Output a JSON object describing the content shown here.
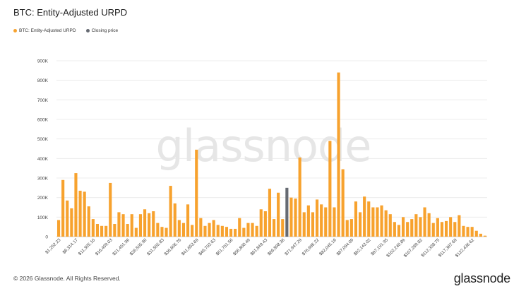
{
  "header": {
    "title": "BTC: Entity-Adjusted URPD"
  },
  "legend": [
    {
      "label": "BTC: Entity-Adjusted URPD",
      "color": "#f7a22e"
    },
    {
      "label": "Closing price",
      "color": "#666a72"
    }
  ],
  "watermark": "glassnode",
  "footer": {
    "copyright": "© 2026 Glassnode. All Rights Reserved.",
    "brand": "glassnode"
  },
  "chart_data": {
    "type": "bar",
    "ylim": [
      0,
      900000
    ],
    "yticks": [
      {
        "v": 0,
        "label": "0"
      },
      {
        "v": 100000,
        "label": "100K"
      },
      {
        "v": 200000,
        "label": "200K"
      },
      {
        "v": 300000,
        "label": "300K"
      },
      {
        "v": 400000,
        "label": "400K"
      },
      {
        "v": 500000,
        "label": "500K"
      },
      {
        "v": 600000,
        "label": "600K"
      },
      {
        "v": 700000,
        "label": "700K"
      },
      {
        "v": 800000,
        "label": "800K"
      },
      {
        "v": 900000,
        "label": "900K"
      }
    ],
    "xtick_labels": [
      "$1,252.23",
      "$6,314.17",
      "$11,305.10",
      "$16,409.03",
      "$21,451.96",
      "$26,505.90",
      "$31,555.83",
      "$36,606.76",
      "$41,653.69",
      "$46,702.63",
      "$51,751.56",
      "$56,800.49",
      "$61,849.43",
      "$66,898.36",
      "$71,947.29",
      "$76,996.22",
      "$82,045.16",
      "$87,094.09",
      "$92,143.02",
      "$97,191.95",
      "$102,240.89",
      "$107,289.82",
      "$112,338.75",
      "$117,387.69",
      "$122,436.62"
    ],
    "highlight_index": 53,
    "values": [
      85000,
      290000,
      185000,
      145000,
      325000,
      235000,
      230000,
      155000,
      90000,
      65000,
      55000,
      55000,
      275000,
      65000,
      125000,
      115000,
      65000,
      115000,
      45000,
      115000,
      140000,
      120000,
      130000,
      70000,
      50000,
      45000,
      260000,
      170000,
      85000,
      70000,
      165000,
      60000,
      445000,
      95000,
      55000,
      70000,
      85000,
      60000,
      55000,
      50000,
      40000,
      40000,
      95000,
      45000,
      70000,
      70000,
      55000,
      140000,
      130000,
      245000,
      90000,
      225000,
      90000,
      250000,
      200000,
      195000,
      405000,
      125000,
      160000,
      125000,
      190000,
      165000,
      150000,
      490000,
      150000,
      840000,
      345000,
      85000,
      90000,
      180000,
      125000,
      205000,
      180000,
      150000,
      150000,
      160000,
      135000,
      115000,
      75000,
      60000,
      100000,
      75000,
      90000,
      115000,
      100000,
      150000,
      120000,
      70000,
      95000,
      75000,
      80000,
      100000,
      75000,
      110000,
      55000,
      50000,
      50000,
      30000,
      15000,
      5000
    ]
  }
}
